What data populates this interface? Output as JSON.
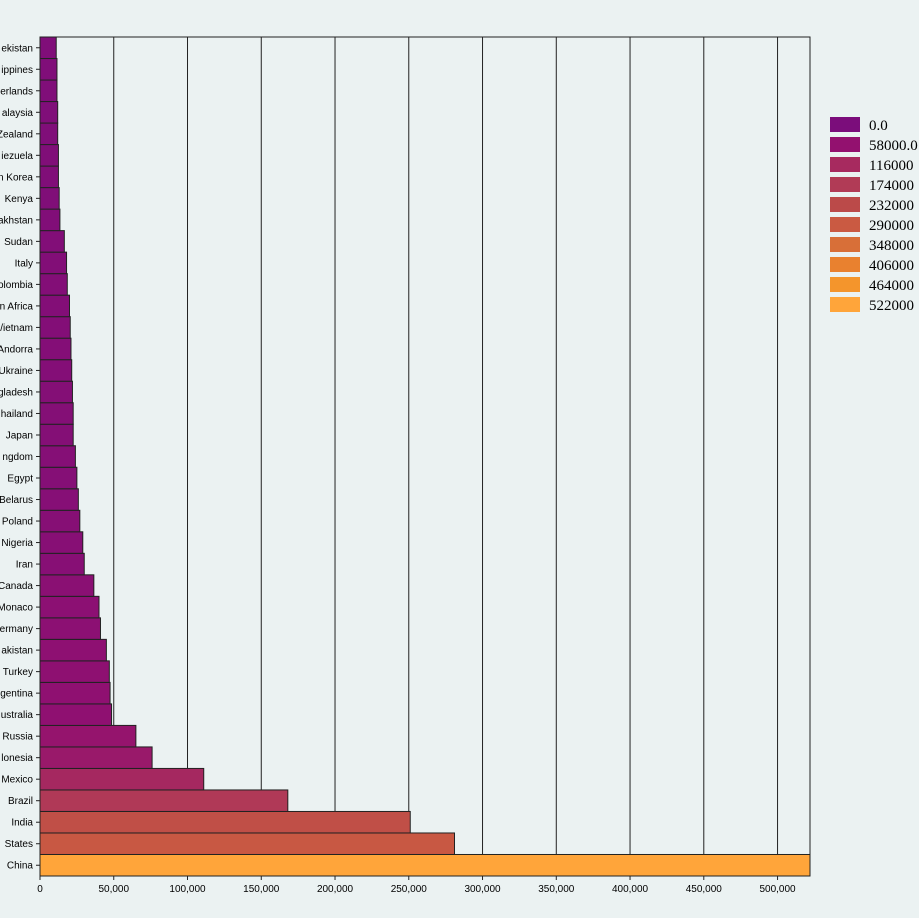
{
  "chart_data": {
    "type": "bar",
    "orientation": "horizontal",
    "categories": [
      "China",
      "States",
      "India",
      "Brazil",
      "Mexico",
      "lonesia",
      "Russia",
      "ustralia",
      "gentina",
      "Turkey",
      "akistan",
      "ermany",
      "Monaco",
      "Canada",
      "Iran",
      "Nigeria",
      "Poland",
      "Belarus",
      "Egypt",
      "ngdom",
      "Japan",
      "hailand",
      "gladesh",
      "Ukraine",
      "Andorra",
      "/ietnam",
      "n Africa",
      "olombia",
      "Italy",
      "Sudan",
      "akhstan",
      "Kenya",
      "n Korea",
      "iezuela",
      "Zealand",
      "alaysia",
      "erlands",
      "ippines",
      "ekistan"
    ],
    "values": [
      522000,
      281000,
      251000,
      168000,
      111000,
      76000,
      65000,
      48500,
      47500,
      47000,
      45000,
      41000,
      40000,
      36500,
      30000,
      29000,
      27000,
      26000,
      25000,
      24000,
      22500,
      22500,
      22000,
      21500,
      21000,
      20500,
      20000,
      18500,
      18000,
      16500,
      13500,
      13000,
      12500,
      12500,
      12000,
      12000,
      11500,
      11500,
      11000
    ],
    "xlim": [
      0,
      522000
    ],
    "x_ticks": [
      {
        "value": 0,
        "label": "0"
      },
      {
        "value": 50000,
        "label": "50,000"
      },
      {
        "value": 100000,
        "label": "100,000"
      },
      {
        "value": 150000,
        "label": "150,000"
      },
      {
        "value": 200000,
        "label": "200,000"
      },
      {
        "value": 250000,
        "label": "250,000"
      },
      {
        "value": 300000,
        "label": "300,000"
      },
      {
        "value": 350000,
        "label": "350,000"
      },
      {
        "value": 400000,
        "label": "400,000"
      },
      {
        "value": 450000,
        "label": "450,000"
      },
      {
        "value": 500000,
        "label": "500,000"
      }
    ],
    "grid": true,
    "legend_position": "right",
    "legend": [
      {
        "label": "0.0",
        "color": "#7b0d7b"
      },
      {
        "label": "58000.0",
        "color": "#93116f"
      },
      {
        "label": "116000",
        "color": "#a72a5f"
      },
      {
        "label": "174000",
        "color": "#b13b56"
      },
      {
        "label": "232000",
        "color": "#bb4a49"
      },
      {
        "label": "290000",
        "color": "#ca5a42"
      },
      {
        "label": "348000",
        "color": "#d86f38"
      },
      {
        "label": "406000",
        "color": "#e9812f"
      },
      {
        "label": "464000",
        "color": "#f4952c"
      },
      {
        "label": "522000",
        "color": "#ffa53a"
      }
    ],
    "color_domain": [
      0,
      522000
    ],
    "background": "#ebf2f2"
  }
}
